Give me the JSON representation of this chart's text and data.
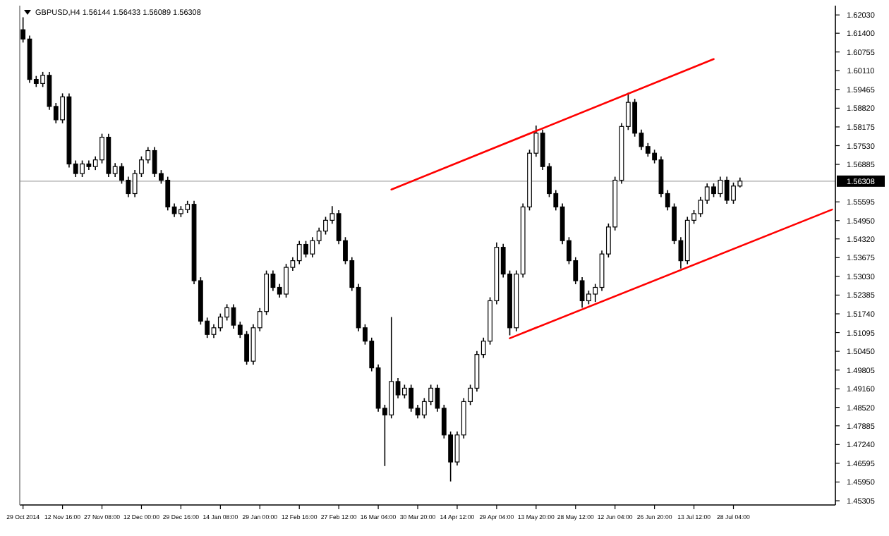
{
  "chart_data": {
    "type": "candlestick",
    "title": "GBPUSD,H4  1.56144 1.56433 1.56089 1.56308",
    "categories": [
      "29 Oct 2014",
      null,
      null,
      null,
      null,
      null,
      "12 Nov 16:00",
      null,
      null,
      null,
      null,
      null,
      "27 Nov 08:00",
      null,
      null,
      null,
      null,
      null,
      "12 Dec 00:00",
      null,
      null,
      null,
      null,
      null,
      "29 Dec 16:00",
      null,
      null,
      null,
      null,
      null,
      "14 Jan 08:00",
      null,
      null,
      null,
      null,
      null,
      "29 Jan 00:00",
      null,
      null,
      null,
      null,
      null,
      "12 Feb 16:00",
      null,
      null,
      null,
      null,
      null,
      "27 Feb 12:00",
      null,
      null,
      null,
      null,
      null,
      "16 Mar 04:00",
      null,
      null,
      null,
      null,
      null,
      "30 Mar 20:00",
      null,
      null,
      null,
      null,
      null,
      "14 Apr 12:00",
      null,
      null,
      null,
      null,
      null,
      "29 Apr 04:00",
      null,
      null,
      null,
      null,
      null,
      "13 May 20:00",
      null,
      null,
      null,
      null,
      null,
      "28 May 12:00",
      null,
      null,
      null,
      null,
      null,
      "12 Jun 04:00",
      null,
      null,
      null,
      null,
      null,
      "26 Jun 20:00",
      null,
      null,
      null,
      null,
      null,
      "13 Jul 12:00",
      null,
      null,
      null,
      null,
      null,
      "28 Jul 04:00",
      null,
      null,
      null,
      null,
      null,
      null,
      null,
      null,
      null,
      null,
      null,
      null,
      null,
      null,
      null
    ],
    "ohlc": [
      [
        1.6152,
        1.6195,
        1.6108,
        1.612
      ],
      [
        1.612,
        1.6132,
        1.5969,
        1.5981
      ],
      [
        1.5981,
        1.5993,
        1.5955,
        1.5967
      ],
      [
        1.5967,
        1.6007,
        1.5955,
        1.5995
      ],
      [
        1.5995,
        1.6007,
        1.5876,
        1.5888
      ],
      [
        1.5888,
        1.59,
        1.583,
        1.5842
      ],
      [
        1.5842,
        1.5933,
        1.583,
        1.5921
      ],
      [
        1.5921,
        1.5933,
        1.5678,
        1.569
      ],
      [
        1.569,
        1.5702,
        1.5645,
        1.5657
      ],
      [
        1.5657,
        1.5702,
        1.5645,
        1.569
      ],
      [
        1.569,
        1.5702,
        1.5669,
        1.5681
      ],
      [
        1.5681,
        1.5716,
        1.5669,
        1.5704
      ],
      [
        1.5704,
        1.5794,
        1.5692,
        1.5782
      ],
      [
        1.5782,
        1.5794,
        1.5645,
        1.5657
      ],
      [
        1.5657,
        1.5693,
        1.5645,
        1.5681
      ],
      [
        1.5681,
        1.5693,
        1.5622,
        1.5634
      ],
      [
        1.5634,
        1.5646,
        1.5576,
        1.5588
      ],
      [
        1.5588,
        1.5669,
        1.5576,
        1.5657
      ],
      [
        1.5657,
        1.5716,
        1.5645,
        1.5704
      ],
      [
        1.5704,
        1.5748,
        1.5692,
        1.5736
      ],
      [
        1.5736,
        1.5748,
        1.5645,
        1.5657
      ],
      [
        1.5657,
        1.5669,
        1.5622,
        1.5634
      ],
      [
        1.5634,
        1.5646,
        1.553,
        1.5542
      ],
      [
        1.5542,
        1.5554,
        1.5507,
        1.5519
      ],
      [
        1.5519,
        1.5545,
        1.5507,
        1.5533
      ],
      [
        1.5533,
        1.5563,
        1.5521,
        1.5551
      ],
      [
        1.5551,
        1.5563,
        1.5276,
        1.5288
      ],
      [
        1.5288,
        1.53,
        1.5137,
        1.5149
      ],
      [
        1.5149,
        1.5161,
        1.5091,
        1.5103
      ],
      [
        1.5103,
        1.5138,
        1.5091,
        1.5126
      ],
      [
        1.5126,
        1.5175,
        1.5114,
        1.5163
      ],
      [
        1.5163,
        1.5207,
        1.5151,
        1.5195
      ],
      [
        1.5195,
        1.5207,
        1.5123,
        1.5135
      ],
      [
        1.5135,
        1.5147,
        1.5091,
        1.5103
      ],
      [
        1.5103,
        1.5115,
        1.4999,
        1.5011
      ],
      [
        1.5011,
        1.5138,
        1.4999,
        1.5126
      ],
      [
        1.5126,
        1.5194,
        1.5114,
        1.5182
      ],
      [
        1.5182,
        1.5323,
        1.517,
        1.5311
      ],
      [
        1.5311,
        1.5323,
        1.5253,
        1.5265
      ],
      [
        1.5265,
        1.5277,
        1.523,
        1.5242
      ],
      [
        1.5242,
        1.5346,
        1.523,
        1.5334
      ],
      [
        1.5334,
        1.5369,
        1.5322,
        1.5357
      ],
      [
        1.5357,
        1.5425,
        1.5345,
        1.5413
      ],
      [
        1.5413,
        1.5425,
        1.5368,
        1.538
      ],
      [
        1.538,
        1.5438,
        1.5368,
        1.5426
      ],
      [
        1.5426,
        1.5471,
        1.5414,
        1.5459
      ],
      [
        1.5459,
        1.5508,
        1.5447,
        1.5496
      ],
      [
        1.5496,
        1.5545,
        1.5484,
        1.5519
      ],
      [
        1.5519,
        1.5531,
        1.5414,
        1.5426
      ],
      [
        1.5426,
        1.5438,
        1.5345,
        1.5357
      ],
      [
        1.5357,
        1.5369,
        1.5253,
        1.5265
      ],
      [
        1.5265,
        1.5277,
        1.5114,
        1.5126
      ],
      [
        1.5126,
        1.5138,
        1.5068,
        1.508
      ],
      [
        1.508,
        1.5092,
        1.4976,
        1.4988
      ],
      [
        1.4988,
        1.5,
        1.4837,
        1.4849
      ],
      [
        1.4849,
        1.4861,
        1.465,
        1.4826
      ],
      [
        1.4826,
        1.5163,
        1.4814,
        1.4941
      ],
      [
        1.4941,
        1.4953,
        1.4883,
        1.4895
      ],
      [
        1.4895,
        1.493,
        1.4883,
        1.4918
      ],
      [
        1.4918,
        1.493,
        1.4837,
        1.4849
      ],
      [
        1.4849,
        1.4861,
        1.4814,
        1.4826
      ],
      [
        1.4826,
        1.4884,
        1.4814,
        1.4872
      ],
      [
        1.4872,
        1.493,
        1.486,
        1.4918
      ],
      [
        1.4918,
        1.493,
        1.4837,
        1.4849
      ],
      [
        1.4849,
        1.4861,
        1.4745,
        1.4757
      ],
      [
        1.4757,
        1.4769,
        1.4597,
        1.4664
      ],
      [
        1.4664,
        1.4769,
        1.4652,
        1.4757
      ],
      [
        1.4757,
        1.4884,
        1.4745,
        1.4872
      ],
      [
        1.4872,
        1.493,
        1.486,
        1.4918
      ],
      [
        1.4918,
        1.5046,
        1.4906,
        1.5034
      ],
      [
        1.5034,
        1.5092,
        1.5022,
        1.508
      ],
      [
        1.508,
        1.5231,
        1.5068,
        1.5219
      ],
      [
        1.5219,
        1.542,
        1.5207,
        1.5403
      ],
      [
        1.5403,
        1.5415,
        1.5299,
        1.5311
      ],
      [
        1.5311,
        1.5323,
        1.51,
        1.5126
      ],
      [
        1.5126,
        1.5323,
        1.5114,
        1.5311
      ],
      [
        1.5311,
        1.5554,
        1.5299,
        1.5542
      ],
      [
        1.5542,
        1.5739,
        1.553,
        1.5727
      ],
      [
        1.5727,
        1.5822,
        1.5715,
        1.5796
      ],
      [
        1.5796,
        1.5808,
        1.5669,
        1.5681
      ],
      [
        1.5681,
        1.5693,
        1.5576,
        1.5588
      ],
      [
        1.5588,
        1.56,
        1.553,
        1.5542
      ],
      [
        1.5542,
        1.5554,
        1.5414,
        1.5426
      ],
      [
        1.5426,
        1.5438,
        1.5345,
        1.5357
      ],
      [
        1.5357,
        1.5369,
        1.5276,
        1.5288
      ],
      [
        1.5288,
        1.53,
        1.5195,
        1.5219
      ],
      [
        1.5219,
        1.5254,
        1.5207,
        1.5242
      ],
      [
        1.5242,
        1.5277,
        1.5215,
        1.5265
      ],
      [
        1.5265,
        1.5392,
        1.5253,
        1.538
      ],
      [
        1.538,
        1.5485,
        1.5368,
        1.5473
      ],
      [
        1.5473,
        1.5646,
        1.5461,
        1.5634
      ],
      [
        1.5634,
        1.5831,
        1.5622,
        1.5819
      ],
      [
        1.5819,
        1.5935,
        1.5807,
        1.5902
      ],
      [
        1.5902,
        1.5914,
        1.5784,
        1.5796
      ],
      [
        1.5796,
        1.5808,
        1.5738,
        1.575
      ],
      [
        1.575,
        1.5762,
        1.5715,
        1.5727
      ],
      [
        1.5727,
        1.5739,
        1.5692,
        1.5704
      ],
      [
        1.5704,
        1.5716,
        1.5576,
        1.5588
      ],
      [
        1.5588,
        1.56,
        1.553,
        1.5542
      ],
      [
        1.5542,
        1.5554,
        1.5414,
        1.5426
      ],
      [
        1.5426,
        1.5438,
        1.533,
        1.5357
      ],
      [
        1.5357,
        1.5508,
        1.5345,
        1.5496
      ],
      [
        1.5496,
        1.5531,
        1.5484,
        1.5519
      ],
      [
        1.5519,
        1.5577,
        1.5507,
        1.5565
      ],
      [
        1.5565,
        1.5623,
        1.5553,
        1.5611
      ],
      [
        1.5611,
        1.5623,
        1.5576,
        1.5588
      ],
      [
        1.5588,
        1.5646,
        1.5576,
        1.5634
      ],
      [
        1.5634,
        1.5646,
        1.5553,
        1.5565
      ],
      [
        1.5565,
        1.5626,
        1.5553,
        1.5614
      ],
      [
        1.5614,
        1.5643,
        1.5609,
        1.5631
      ],
      null,
      null,
      null,
      null,
      null,
      null,
      null,
      null,
      null,
      null,
      null,
      null,
      null,
      null
    ],
    "series": [
      {
        "type": "line",
        "color": "#ff0000",
        "values": [
          null,
          null,
          null,
          null,
          null,
          null,
          null,
          null,
          null,
          null,
          null,
          null,
          null,
          null,
          null,
          null,
          null,
          null,
          null,
          null,
          null,
          null,
          null,
          null,
          null,
          null,
          null,
          null,
          null,
          null,
          null,
          null,
          null,
          null,
          null,
          null,
          null,
          null,
          null,
          null,
          null,
          null,
          null,
          null,
          null,
          null,
          null,
          null,
          null,
          null,
          null,
          null,
          null,
          null,
          null,
          null,
          1.5602,
          null,
          null,
          null,
          null,
          null,
          null,
          null,
          null,
          null,
          null,
          null,
          null,
          null,
          null,
          null,
          null,
          null,
          null,
          null,
          null,
          null,
          null,
          null,
          null,
          null,
          null,
          null,
          null,
          null,
          null,
          null,
          null,
          null,
          null,
          null,
          null,
          null,
          null,
          null,
          null,
          null,
          null,
          null,
          null,
          null,
          null,
          null,
          null,
          1.6051,
          null,
          null,
          null,
          null,
          null,
          null,
          null,
          null,
          null,
          null,
          null,
          null,
          null,
          null,
          null,
          null,
          null,
          null
        ]
      },
      {
        "type": "line",
        "color": "#ff0000",
        "values": [
          null,
          null,
          null,
          null,
          null,
          null,
          null,
          null,
          null,
          null,
          null,
          null,
          null,
          null,
          null,
          null,
          null,
          null,
          null,
          null,
          null,
          null,
          null,
          null,
          null,
          null,
          null,
          null,
          null,
          null,
          null,
          null,
          null,
          null,
          null,
          null,
          null,
          null,
          null,
          null,
          null,
          null,
          null,
          null,
          null,
          null,
          null,
          null,
          null,
          null,
          null,
          null,
          null,
          null,
          null,
          null,
          null,
          null,
          null,
          null,
          null,
          null,
          null,
          null,
          null,
          null,
          null,
          null,
          null,
          null,
          null,
          null,
          null,
          null,
          1.509,
          null,
          null,
          null,
          null,
          null,
          null,
          null,
          null,
          null,
          null,
          null,
          null,
          null,
          null,
          null,
          null,
          null,
          null,
          null,
          null,
          null,
          null,
          null,
          null,
          null,
          null,
          null,
          null,
          null,
          null,
          null,
          null,
          null,
          null,
          null,
          null,
          null,
          null,
          null,
          null,
          null,
          null,
          null,
          null,
          null,
          null,
          null,
          null,
          1.5533
        ]
      }
    ],
    "ylim": [
      1.4516,
      1.6235
    ],
    "yticks": [
      {
        "value": 1.6203,
        "label": "1.62030"
      },
      {
        "value": 1.614,
        "label": "1.61400"
      },
      1.60755,
      {
        "value": 1.6011,
        "label": "1.60110"
      },
      1.59465,
      {
        "value": 1.5882,
        "label": "1.58820"
      },
      1.58175,
      {
        "value": 1.5753,
        "label": "1.57530"
      },
      1.56885,
      1.55595,
      {
        "value": 1.5495,
        "label": "1.54950"
      },
      {
        "value": 1.5432,
        "label": "1.54320"
      },
      1.53675,
      {
        "value": 1.5303,
        "label": "1.53030"
      },
      1.52385,
      {
        "value": 1.5174,
        "label": "1.51740"
      },
      1.51095,
      {
        "value": 1.5045,
        "label": "1.50450"
      },
      1.49805,
      {
        "value": 1.4916,
        "label": "1.49160"
      },
      {
        "value": 1.4852,
        "label": "1.48520"
      },
      1.47885,
      {
        "value": 1.4724,
        "label": "1.47240"
      },
      1.46595,
      {
        "value": 1.4595,
        "label": "1.45950"
      },
      1.45305
    ],
    "ref_lines": [
      {
        "axis": "y",
        "value": 1.56308,
        "label": "1.56308",
        "color": "#c0c0c0"
      }
    ]
  }
}
